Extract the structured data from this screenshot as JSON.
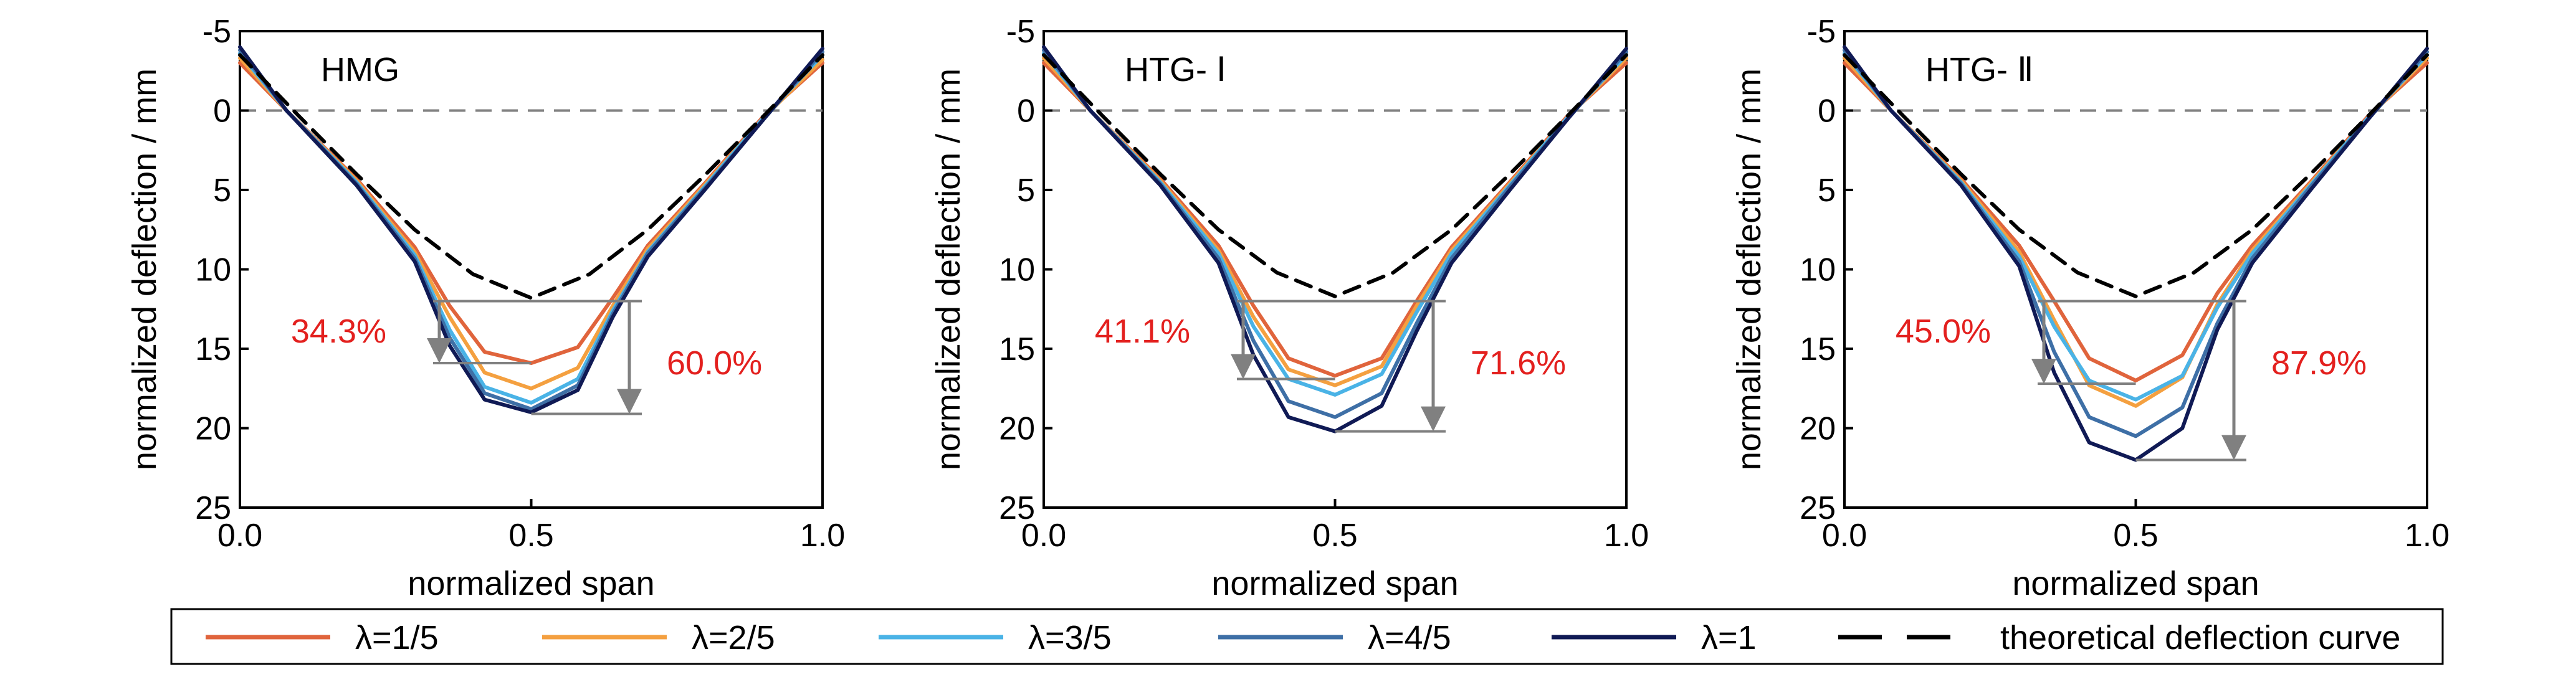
{
  "chart_data": [
    {
      "type": "line",
      "title": "HMG",
      "xlabel": "normalized span",
      "ylabel": "normalized deflection / mm",
      "xlim": [
        0.0,
        1.0
      ],
      "ylim": [
        -5,
        25
      ],
      "y_inverted": true,
      "xticks": [
        "0.0",
        "0.5",
        "1.0"
      ],
      "yticks": [
        "-5",
        "0",
        "5",
        "10",
        "15",
        "20",
        "25"
      ],
      "series": [
        {
          "name": "λ=1/5",
          "x": [
            0.0,
            0.08,
            0.2,
            0.3,
            0.36,
            0.42,
            0.5,
            0.58,
            0.64,
            0.7,
            0.8,
            0.9,
            1.0
          ],
          "y": [
            -3.0,
            0.0,
            4.3,
            8.6,
            12.3,
            15.2,
            15.9,
            14.9,
            11.8,
            8.5,
            4.5,
            0.3,
            -3.0
          ]
        },
        {
          "name": "λ=2/5",
          "x": [
            0.0,
            0.08,
            0.2,
            0.3,
            0.36,
            0.42,
            0.5,
            0.58,
            0.64,
            0.7,
            0.8,
            0.9,
            1.0
          ],
          "y": [
            -3.3,
            0.0,
            4.4,
            8.9,
            13.0,
            16.5,
            17.5,
            16.2,
            12.3,
            8.7,
            4.6,
            0.4,
            -3.2
          ]
        },
        {
          "name": "λ=3/5",
          "x": [
            0.0,
            0.08,
            0.2,
            0.3,
            0.36,
            0.42,
            0.5,
            0.58,
            0.64,
            0.7,
            0.8,
            0.9,
            1.0
          ],
          "y": [
            -3.6,
            0.0,
            4.5,
            9.1,
            13.8,
            17.4,
            18.4,
            16.9,
            12.6,
            8.9,
            4.7,
            0.4,
            -3.5
          ]
        },
        {
          "name": "λ=4/5",
          "x": [
            0.0,
            0.08,
            0.2,
            0.3,
            0.36,
            0.42,
            0.5,
            0.58,
            0.64,
            0.7,
            0.8,
            0.9,
            1.0
          ],
          "y": [
            -3.8,
            0.0,
            4.6,
            9.3,
            14.3,
            17.8,
            18.8,
            17.3,
            12.8,
            9.0,
            4.8,
            0.5,
            -3.7
          ]
        },
        {
          "name": "λ=1",
          "x": [
            0.0,
            0.08,
            0.2,
            0.3,
            0.36,
            0.42,
            0.5,
            0.58,
            0.64,
            0.7,
            0.8,
            0.9,
            1.0
          ],
          "y": [
            -4.0,
            0.0,
            4.7,
            9.5,
            14.8,
            18.2,
            19.0,
            17.6,
            13.0,
            9.2,
            4.9,
            0.5,
            -3.9
          ]
        },
        {
          "name": "theoretical deflection curve",
          "x": [
            0.0,
            0.1,
            0.2,
            0.3,
            0.4,
            0.5,
            0.6,
            0.7,
            0.8,
            0.9,
            1.0
          ],
          "y": [
            -3.5,
            0.3,
            4.0,
            7.5,
            10.3,
            11.8,
            10.3,
            7.5,
            4.0,
            0.3,
            -3.5
          ]
        }
      ],
      "annotations": [
        {
          "text": "34.3%",
          "from": 12.0,
          "to": 15.9
        },
        {
          "text": "60.0%",
          "from": 12.0,
          "to": 19.1
        }
      ]
    },
    {
      "type": "line",
      "title": "HTG- Ⅰ",
      "xlabel": "normalized span",
      "ylabel": "normalized deflection / mm",
      "xlim": [
        0.0,
        1.0
      ],
      "ylim": [
        -5,
        25
      ],
      "y_inverted": true,
      "xticks": [
        "0.0",
        "0.5",
        "1.0"
      ],
      "yticks": [
        "-5",
        "0",
        "5",
        "10",
        "15",
        "20",
        "25"
      ],
      "series": [
        {
          "name": "λ=1/5",
          "x": [
            0.0,
            0.08,
            0.2,
            0.3,
            0.36,
            0.42,
            0.5,
            0.58,
            0.64,
            0.7,
            0.8,
            0.9,
            1.0
          ],
          "y": [
            -3.0,
            0.0,
            4.3,
            8.5,
            12.3,
            15.6,
            16.7,
            15.6,
            12.0,
            8.6,
            4.5,
            0.3,
            -3.0
          ]
        },
        {
          "name": "λ=2/5",
          "x": [
            0.0,
            0.08,
            0.2,
            0.3,
            0.36,
            0.42,
            0.5,
            0.58,
            0.64,
            0.7,
            0.8,
            0.9,
            1.0
          ],
          "y": [
            -3.3,
            0.0,
            4.4,
            8.8,
            13.0,
            16.3,
            17.3,
            16.1,
            12.3,
            8.8,
            4.6,
            0.4,
            -3.3
          ]
        },
        {
          "name": "λ=3/5",
          "x": [
            0.0,
            0.08,
            0.2,
            0.3,
            0.36,
            0.42,
            0.5,
            0.58,
            0.64,
            0.7,
            0.8,
            0.9,
            1.0
          ],
          "y": [
            -3.6,
            0.0,
            4.5,
            9.0,
            13.6,
            16.9,
            17.9,
            16.6,
            12.7,
            9.0,
            4.7,
            0.4,
            -3.5
          ]
        },
        {
          "name": "λ=4/5",
          "x": [
            0.0,
            0.08,
            0.2,
            0.3,
            0.36,
            0.42,
            0.5,
            0.58,
            0.64,
            0.7,
            0.8,
            0.9,
            1.0
          ],
          "y": [
            -3.8,
            0.0,
            4.6,
            9.3,
            14.5,
            18.3,
            19.3,
            17.8,
            13.4,
            9.3,
            4.8,
            0.5,
            -3.7
          ]
        },
        {
          "name": "λ=1",
          "x": [
            0.0,
            0.08,
            0.2,
            0.3,
            0.36,
            0.42,
            0.5,
            0.58,
            0.64,
            0.7,
            0.8,
            0.9,
            1.0
          ],
          "y": [
            -4.0,
            0.0,
            4.7,
            9.6,
            15.4,
            19.3,
            20.2,
            18.6,
            13.9,
            9.6,
            5.0,
            0.5,
            -3.9
          ]
        },
        {
          "name": "theoretical deflection curve",
          "x": [
            0.0,
            0.1,
            0.2,
            0.3,
            0.4,
            0.5,
            0.6,
            0.7,
            0.8,
            0.9,
            1.0
          ],
          "y": [
            -3.5,
            0.3,
            4.0,
            7.5,
            10.2,
            11.7,
            10.2,
            7.5,
            4.0,
            0.3,
            -3.5
          ]
        }
      ],
      "annotations": [
        {
          "text": "41.1%",
          "from": 12.0,
          "to": 16.9
        },
        {
          "text": "71.6%",
          "from": 12.0,
          "to": 20.2
        }
      ]
    },
    {
      "type": "line",
      "title": "HTG- Ⅱ",
      "xlabel": "normalized span",
      "ylabel": "normalized deflection / mm",
      "xlim": [
        0.0,
        1.0
      ],
      "ylim": [
        -5,
        25
      ],
      "y_inverted": true,
      "xticks": [
        "0.0",
        "0.5",
        "1.0"
      ],
      "yticks": [
        "-5",
        "0",
        "5",
        "10",
        "15",
        "20",
        "25"
      ],
      "series": [
        {
          "name": "λ=1/5",
          "x": [
            0.0,
            0.08,
            0.2,
            0.3,
            0.36,
            0.42,
            0.5,
            0.58,
            0.64,
            0.7,
            0.8,
            0.9,
            1.0
          ],
          "y": [
            -3.0,
            0.0,
            4.3,
            8.5,
            12.0,
            15.6,
            17.0,
            15.4,
            11.5,
            8.5,
            4.5,
            0.3,
            -3.0
          ]
        },
        {
          "name": "λ=2/5",
          "x": [
            0.0,
            0.08,
            0.2,
            0.3,
            0.36,
            0.42,
            0.5,
            0.58,
            0.64,
            0.7,
            0.8,
            0.9,
            1.0
          ],
          "y": [
            -3.3,
            0.0,
            4.4,
            8.9,
            13.2,
            17.3,
            18.6,
            16.8,
            12.2,
            8.8,
            4.6,
            0.4,
            -3.3
          ]
        },
        {
          "name": "λ=3/5",
          "x": [
            0.0,
            0.08,
            0.2,
            0.3,
            0.36,
            0.42,
            0.5,
            0.58,
            0.64,
            0.7,
            0.8,
            0.9,
            1.0
          ],
          "y": [
            -3.6,
            0.0,
            4.5,
            9.2,
            13.6,
            17.0,
            18.2,
            16.7,
            12.4,
            9.0,
            4.7,
            0.4,
            -3.5
          ]
        },
        {
          "name": "λ=4/5",
          "x": [
            0.0,
            0.08,
            0.2,
            0.3,
            0.36,
            0.42,
            0.5,
            0.58,
            0.64,
            0.7,
            0.8,
            0.9,
            1.0
          ],
          "y": [
            -3.8,
            0.0,
            4.6,
            9.5,
            15.2,
            19.3,
            20.5,
            18.7,
            13.4,
            9.3,
            4.8,
            0.5,
            -3.7
          ]
        },
        {
          "name": "λ=1",
          "x": [
            0.0,
            0.08,
            0.2,
            0.3,
            0.36,
            0.42,
            0.5,
            0.58,
            0.64,
            0.7,
            0.8,
            0.9,
            1.0
          ],
          "y": [
            -4.0,
            0.0,
            4.7,
            9.8,
            16.5,
            20.9,
            22.0,
            20.0,
            13.8,
            9.6,
            5.0,
            0.5,
            -3.9
          ]
        },
        {
          "name": "theoretical deflection curve",
          "x": [
            0.0,
            0.1,
            0.2,
            0.3,
            0.4,
            0.5,
            0.6,
            0.7,
            0.8,
            0.9,
            1.0
          ],
          "y": [
            -3.5,
            0.3,
            4.0,
            7.5,
            10.2,
            11.7,
            10.2,
            7.5,
            4.0,
            0.3,
            -3.5
          ]
        }
      ],
      "annotations": [
        {
          "text": "45.0%",
          "from": 12.0,
          "to": 17.2
        },
        {
          "text": "87.9%",
          "from": 12.0,
          "to": 22.0
        }
      ]
    }
  ],
  "legend": {
    "placement": "bottom",
    "items": [
      {
        "label": "λ=1/5",
        "color": "#e0643c",
        "dashed": false
      },
      {
        "label": "λ=2/5",
        "color": "#f4a040",
        "dashed": false
      },
      {
        "label": "λ=3/5",
        "color": "#4ab3e6",
        "dashed": false
      },
      {
        "label": "λ=4/5",
        "color": "#3e6fa6",
        "dashed": false
      },
      {
        "label": "λ=1",
        "color": "#101a55",
        "dashed": false
      },
      {
        "label": "theoretical deflection curve",
        "color": "#000000",
        "dashed": true
      }
    ]
  },
  "colors": {
    "series": [
      "#e0643c",
      "#f4a040",
      "#4ab3e6",
      "#3e6fa6",
      "#101a55",
      "#000000"
    ],
    "annotation_text": "#e3201e",
    "annotation_arrow": "#808080",
    "zero_line": "#808080"
  }
}
